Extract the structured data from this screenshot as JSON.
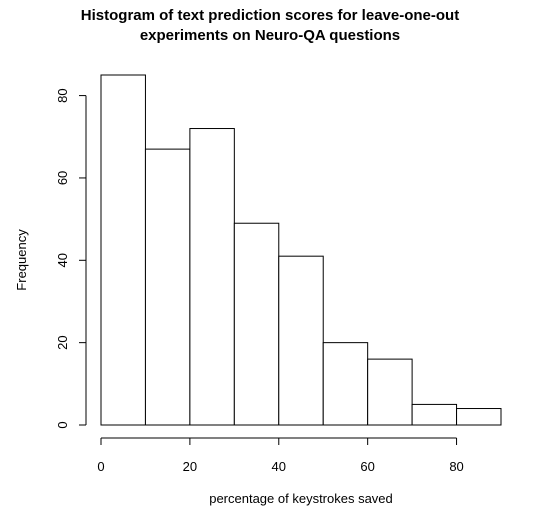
{
  "chart_data": {
    "type": "bar",
    "title_lines": [
      "Histogram of text prediction scores for leave-one-out",
      "experiments on Neuro-QA questions"
    ],
    "xlabel": "percentage of keystrokes saved",
    "ylabel": "Frequency",
    "bin_edges": [
      0,
      10,
      20,
      30,
      40,
      50,
      60,
      70,
      80,
      90
    ],
    "values": [
      85,
      67,
      72,
      49,
      41,
      20,
      16,
      5,
      4
    ],
    "x_ticks": [
      0,
      20,
      40,
      60,
      80
    ],
    "y_ticks": [
      0,
      20,
      40,
      60,
      80
    ],
    "xlim": [
      0,
      90
    ],
    "ylim": [
      0,
      85
    ],
    "grid": false,
    "colors": {
      "bar_fill": "#ffffff",
      "bar_stroke": "#000000"
    }
  }
}
